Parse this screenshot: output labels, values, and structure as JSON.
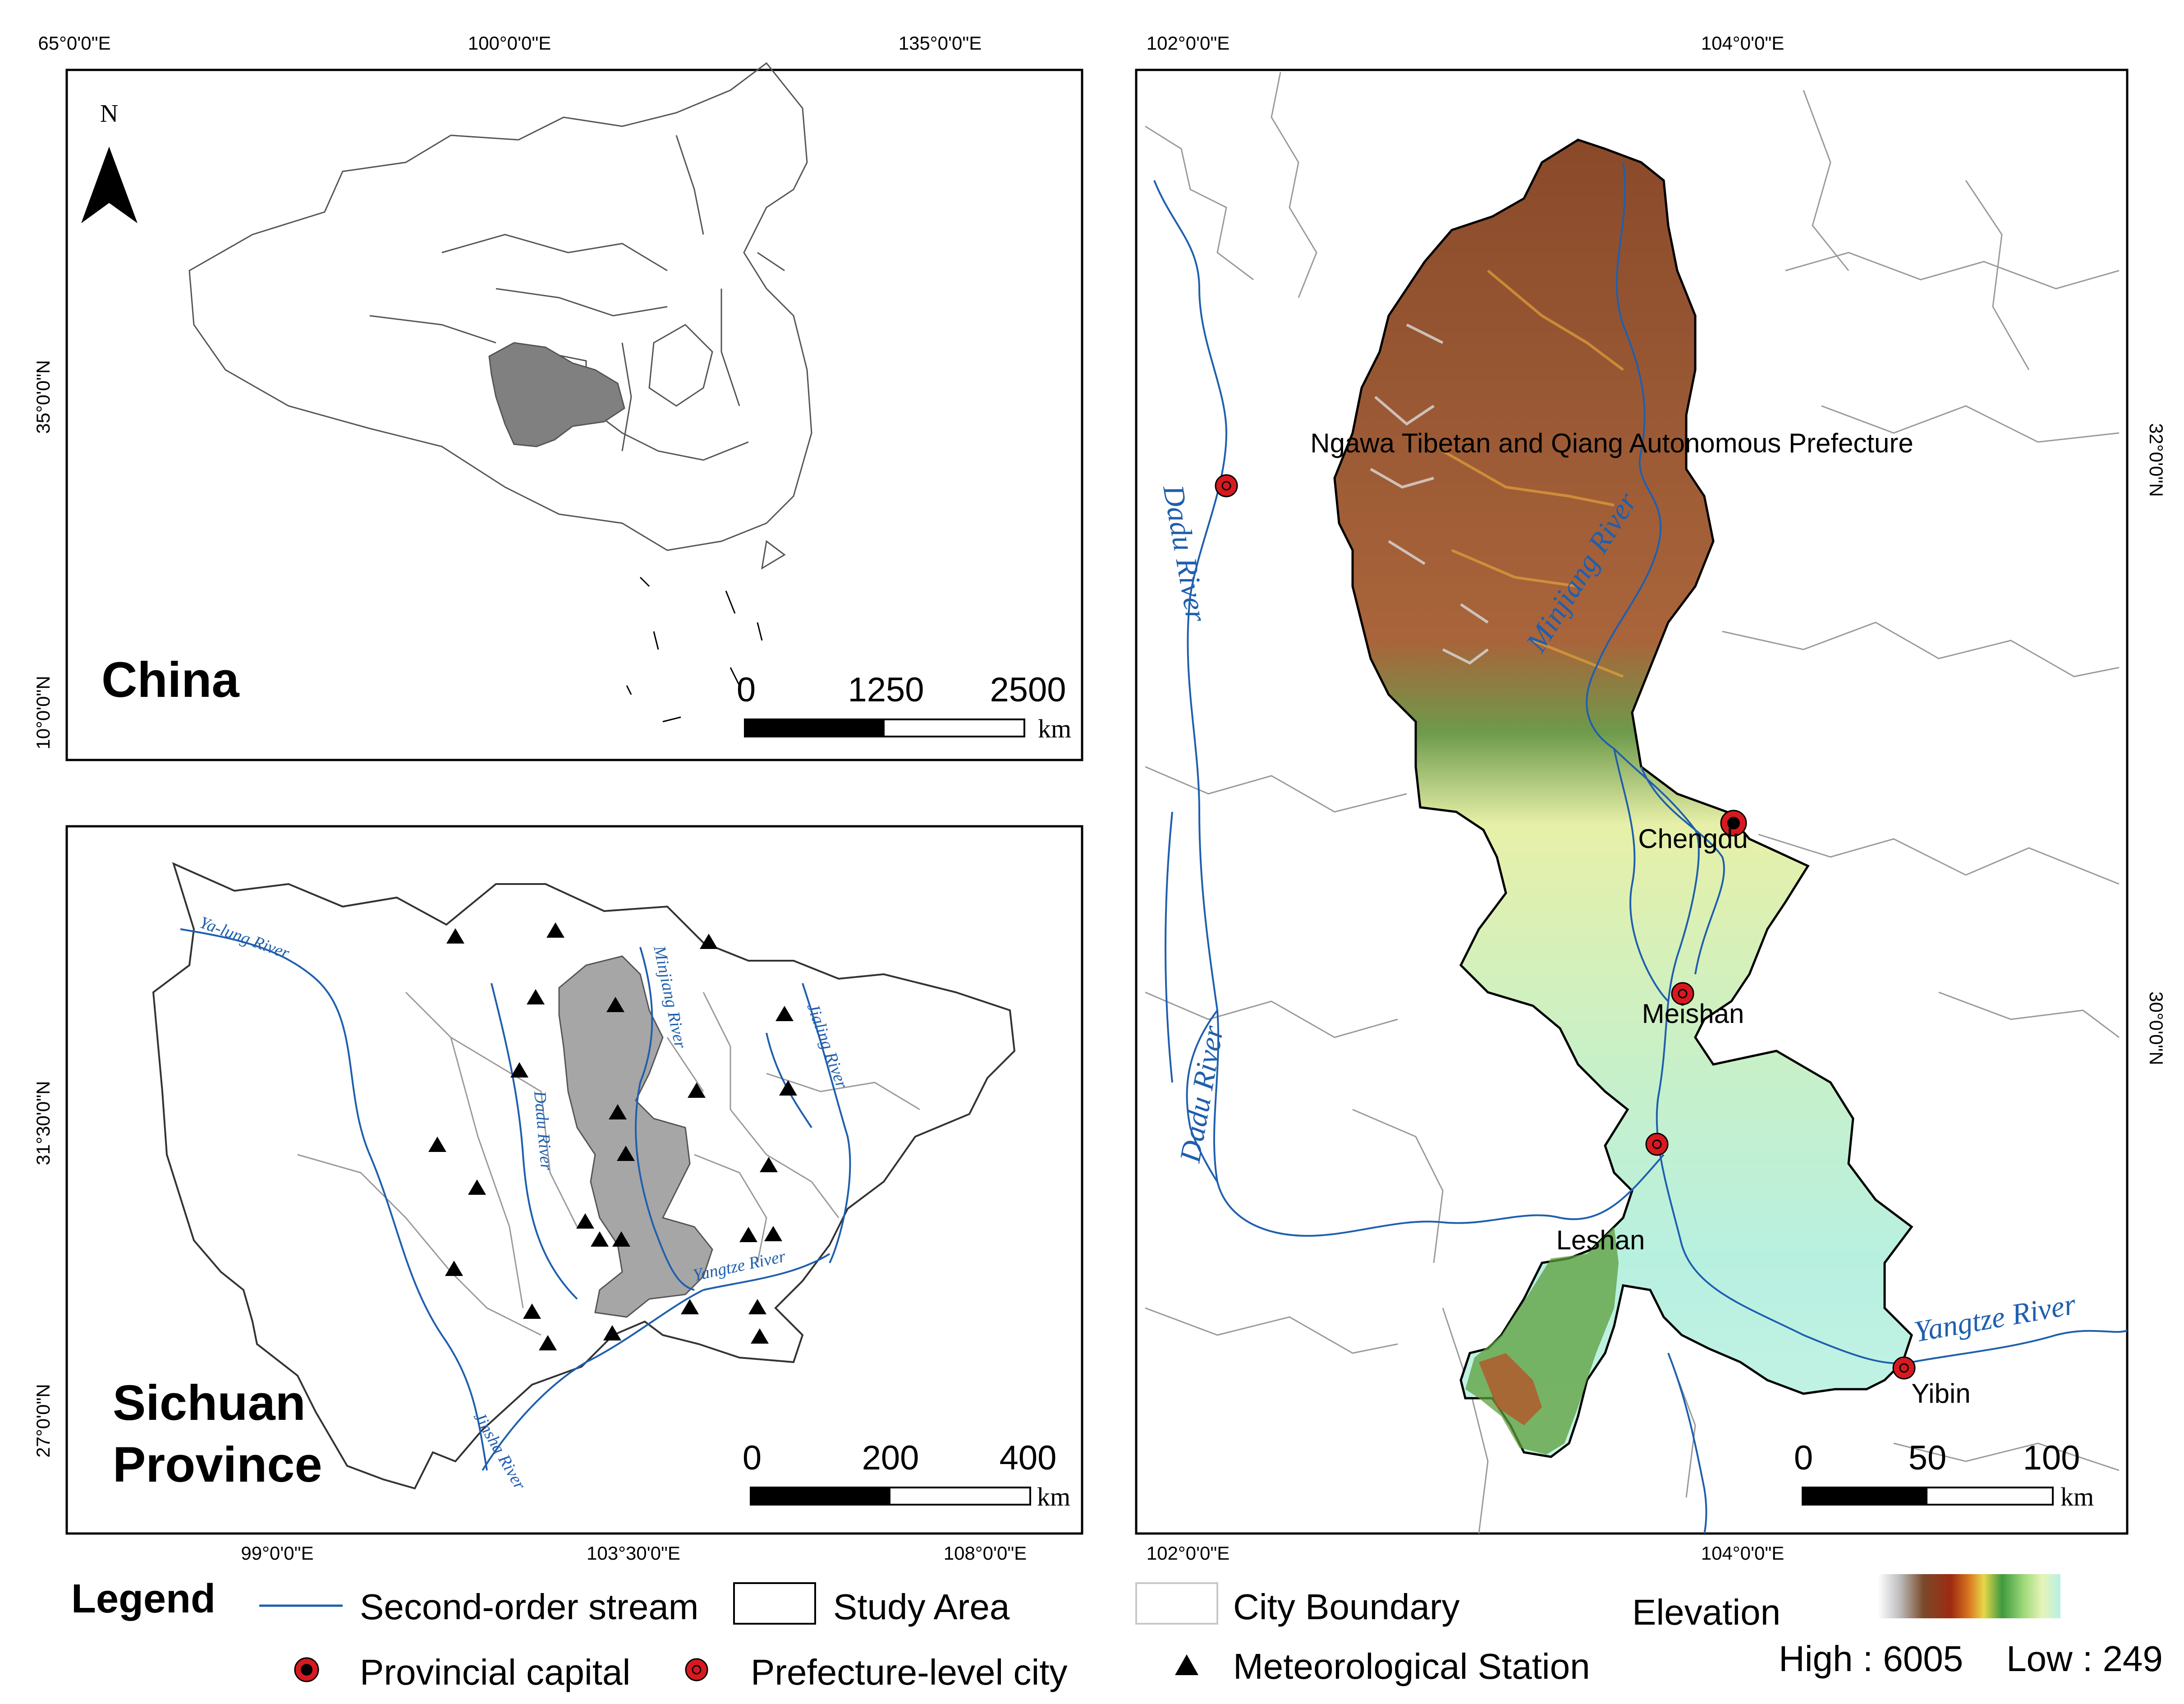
{
  "china": {
    "title": "China",
    "north_label": "N",
    "lon_labels": [
      "65°0'0\"E",
      "100°0'0\"E",
      "135°0'0\"E"
    ],
    "lat_labels": [
      "35°0'0\"N",
      "10°0'0\"N"
    ],
    "scale": {
      "ticks": [
        "0",
        "1250",
        "2500"
      ],
      "unit": "km"
    }
  },
  "sichuan": {
    "title_line1": "Sichuan",
    "title_line2": "Province",
    "lon_labels": [
      "99°0'0\"E",
      "103°30'0\"E",
      "108°0'0\"E"
    ],
    "lat_labels": [
      "31°30'0\"N",
      "27°0'0\"N"
    ],
    "scale": {
      "ticks": [
        "0",
        "200",
        "400"
      ],
      "unit": "km"
    },
    "rivers": [
      "Ya-lung River",
      "Minjiang River",
      "Jialing River",
      "Dadu River",
      "Yangtze River",
      "Jinsha River"
    ]
  },
  "study": {
    "lon_labels": [
      "102°0'0\"E",
      "104°0'0\"E"
    ],
    "lat_labels": [
      "32°0'0\"N",
      "30°0'0\"N"
    ],
    "cities": [
      "Ngawa Tibetan and Qiang Autonomous Prefecture",
      "Chengdu",
      "Meishan",
      "Leshan",
      "Yibin"
    ],
    "rivers": [
      "Dadu River",
      "Minjiang River",
      "Dadu River",
      "Yangtze River"
    ],
    "scale": {
      "ticks": [
        "0",
        "50",
        "100"
      ],
      "unit": "km"
    }
  },
  "legend": {
    "title": "Legend",
    "stream": "Second-order stream",
    "study_area": "Study Area",
    "city_boundary": "City Boundary",
    "elevation": "Elevation",
    "capital": "Provincial capital",
    "prefecture": "Prefecture-level city",
    "station": "Meteorological Station",
    "high": "High : 6005",
    "low": "Low : 249"
  },
  "colors": {
    "river": "#1f5fae",
    "station": "#000000",
    "city": "#d71920",
    "study_area_fill": "#a6a6a6",
    "sichuan_fill": "#808080"
  }
}
